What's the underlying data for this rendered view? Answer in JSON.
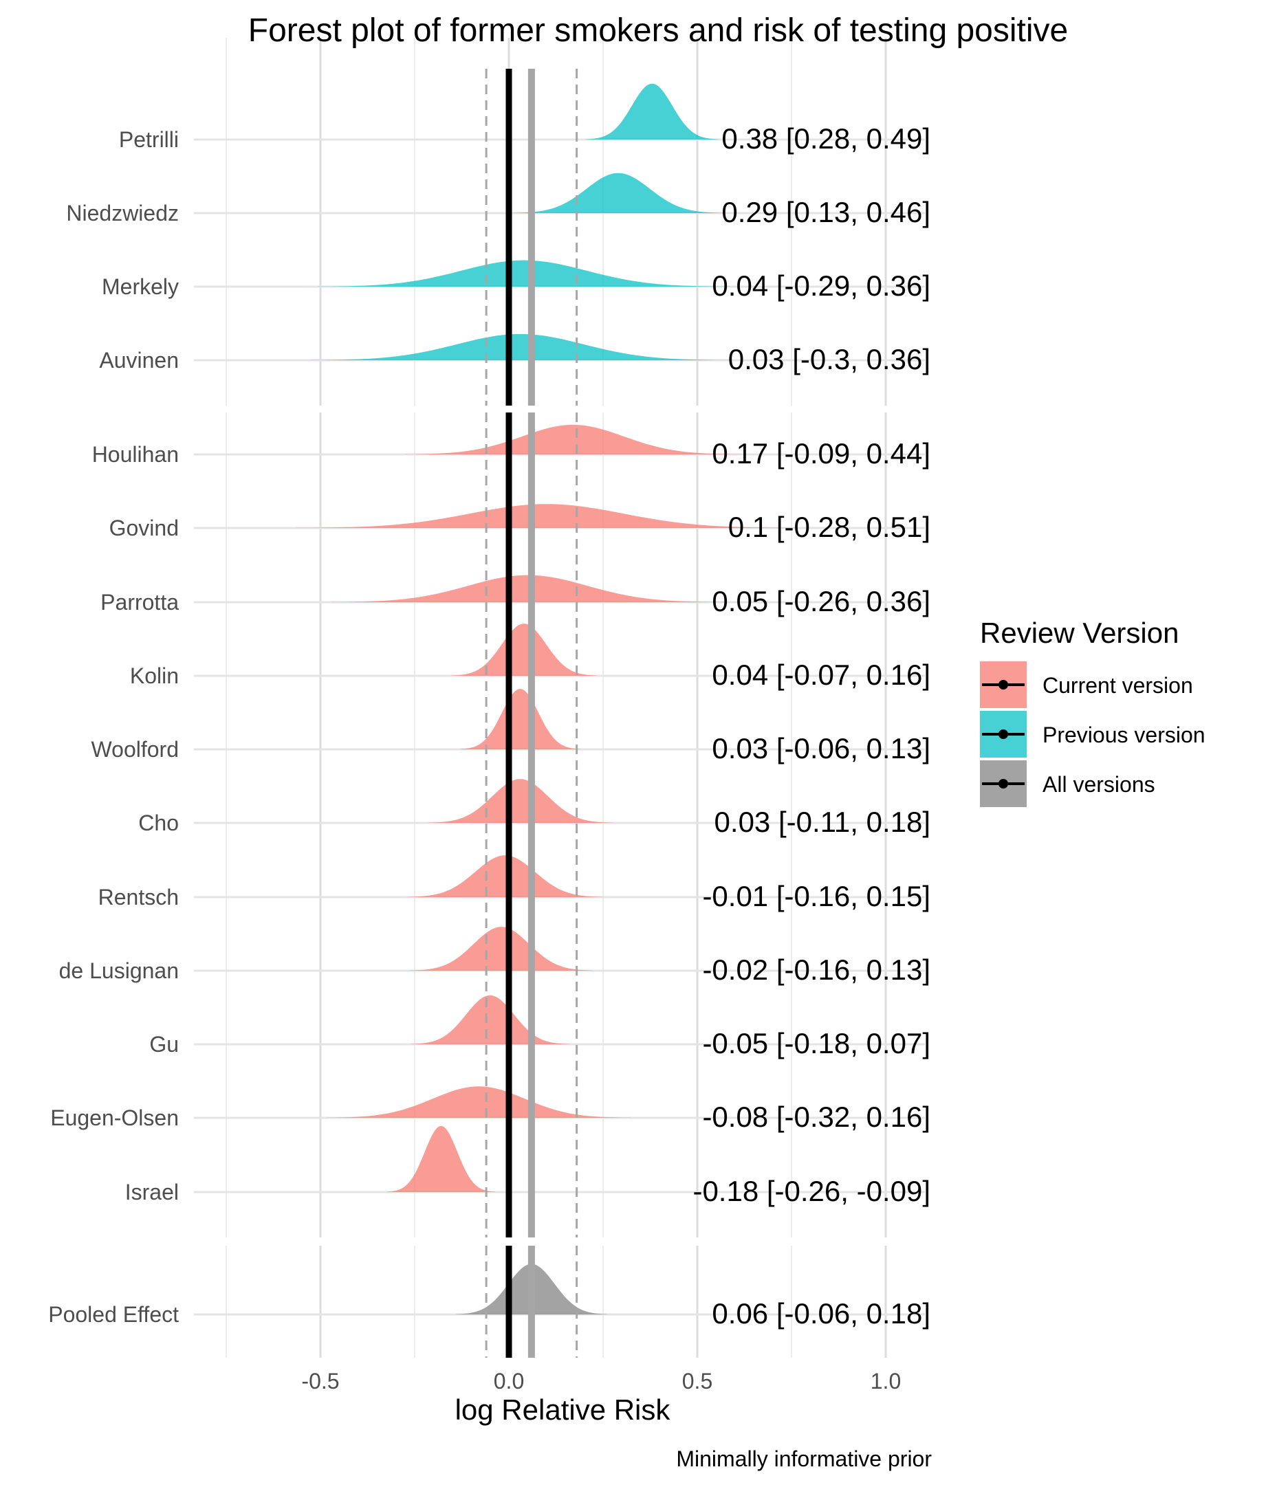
{
  "chart_data": {
    "type": "forest-density",
    "title": "Forest plot of former smokers and risk of testing positive",
    "xlabel": "log Relative Risk",
    "caption": "Minimally informative prior",
    "xlim": [
      -0.85,
      1.1
    ],
    "x_ticks": [
      -0.5,
      0.0,
      0.5,
      1.0
    ],
    "x_tick_labels": [
      "-0.5",
      "0.0",
      "0.5",
      "1.0"
    ],
    "grid": true,
    "reference_line": 0.0,
    "pooled_line": 0.06,
    "pooled_interval_lines": [
      -0.06,
      0.18
    ],
    "legend": {
      "title": "Review Version",
      "position": "right",
      "items": [
        {
          "label": "Current version",
          "color": "#F8766D"
        },
        {
          "label": "Previous version",
          "color": "#00BFC4"
        },
        {
          "label": "All versions",
          "color": "#7F7F7F"
        }
      ]
    },
    "studies": [
      {
        "name": "Petrilli",
        "group": "Previous version",
        "mean": 0.38,
        "lower": 0.28,
        "upper": 0.49,
        "label": "0.38 [0.28, 0.49]"
      },
      {
        "name": "Niedzwiedz",
        "group": "Previous version",
        "mean": 0.29,
        "lower": 0.13,
        "upper": 0.46,
        "label": "0.29 [0.13, 0.46]"
      },
      {
        "name": "Merkely",
        "group": "Previous version",
        "mean": 0.04,
        "lower": -0.29,
        "upper": 0.36,
        "label": "0.04 [-0.29, 0.36]"
      },
      {
        "name": "Auvinen",
        "group": "Previous version",
        "mean": 0.03,
        "lower": -0.3,
        "upper": 0.36,
        "label": "0.03 [-0.3, 0.36]"
      },
      {
        "name": "Houlihan",
        "group": "Current version",
        "mean": 0.17,
        "lower": -0.09,
        "upper": 0.44,
        "label": "0.17 [-0.09, 0.44]"
      },
      {
        "name": "Govind",
        "group": "Current version",
        "mean": 0.1,
        "lower": -0.28,
        "upper": 0.51,
        "label": "0.1 [-0.28, 0.51]"
      },
      {
        "name": "Parrotta",
        "group": "Current version",
        "mean": 0.05,
        "lower": -0.26,
        "upper": 0.36,
        "label": "0.05 [-0.26, 0.36]"
      },
      {
        "name": "Kolin",
        "group": "Current version",
        "mean": 0.04,
        "lower": -0.07,
        "upper": 0.16,
        "label": "0.04 [-0.07, 0.16]"
      },
      {
        "name": "Woolford",
        "group": "Current version",
        "mean": 0.03,
        "lower": -0.06,
        "upper": 0.13,
        "label": "0.03 [-0.06, 0.13]"
      },
      {
        "name": "Cho",
        "group": "Current version",
        "mean": 0.03,
        "lower": -0.11,
        "upper": 0.18,
        "label": "0.03 [-0.11, 0.18]"
      },
      {
        "name": "Rentsch",
        "group": "Current version",
        "mean": -0.01,
        "lower": -0.16,
        "upper": 0.15,
        "label": "-0.01 [-0.16, 0.15]"
      },
      {
        "name": "de Lusignan",
        "group": "Current version",
        "mean": -0.02,
        "lower": -0.16,
        "upper": 0.13,
        "label": "-0.02 [-0.16, 0.13]"
      },
      {
        "name": "Gu",
        "group": "Current version",
        "mean": -0.05,
        "lower": -0.18,
        "upper": 0.07,
        "label": "-0.05 [-0.18, 0.07]"
      },
      {
        "name": "Eugen-Olsen",
        "group": "Current version",
        "mean": -0.08,
        "lower": -0.32,
        "upper": 0.16,
        "label": "-0.08 [-0.32, 0.16]"
      },
      {
        "name": "Israel",
        "group": "Current version",
        "mean": -0.18,
        "lower": -0.26,
        "upper": -0.09,
        "label": "-0.18 [-0.26, -0.09]"
      },
      {
        "name": "Pooled Effect",
        "group": "All versions",
        "mean": 0.06,
        "lower": -0.06,
        "upper": 0.18,
        "label": "0.06 [-0.06, 0.18]"
      }
    ]
  }
}
